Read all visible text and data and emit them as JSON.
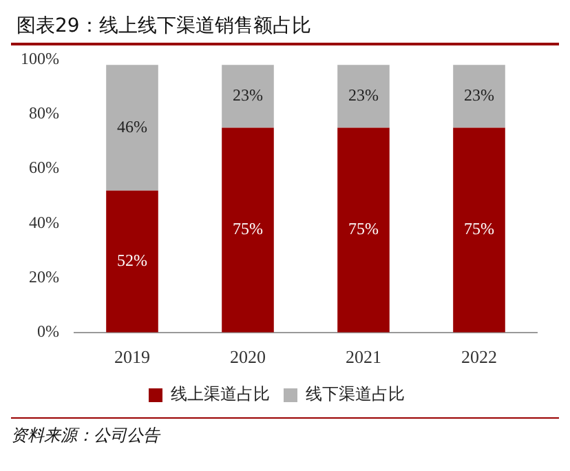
{
  "chart_data": {
    "type": "bar",
    "title": "图表29：线上线下渠道销售额占比",
    "categories": [
      "2019",
      "2020",
      "2021",
      "2022"
    ],
    "stacked": true,
    "series": [
      {
        "name": "线上渠道占比",
        "color": "#990000",
        "values": [
          52,
          75,
          75,
          75
        ],
        "value_labels": [
          "52%",
          "75%",
          "75%",
          "75%"
        ]
      },
      {
        "name": "线下渠道占比",
        "color": "#b3b3b3",
        "values": [
          46,
          23,
          23,
          23
        ],
        "value_labels": [
          "46%",
          "23%",
          "23%",
          "23%"
        ]
      }
    ],
    "ylim": [
      0,
      100
    ],
    "yticks": [
      {
        "value": 0,
        "label": "0%"
      },
      {
        "value": 20,
        "label": "20%"
      },
      {
        "value": 40,
        "label": "40%"
      },
      {
        "value": 60,
        "label": "60%"
      },
      {
        "value": 80,
        "label": "80%"
      },
      {
        "value": 100,
        "label": "100%"
      }
    ],
    "grid": false,
    "legend": "bottom",
    "annotations": [
      "资料来源：公司公告"
    ]
  }
}
